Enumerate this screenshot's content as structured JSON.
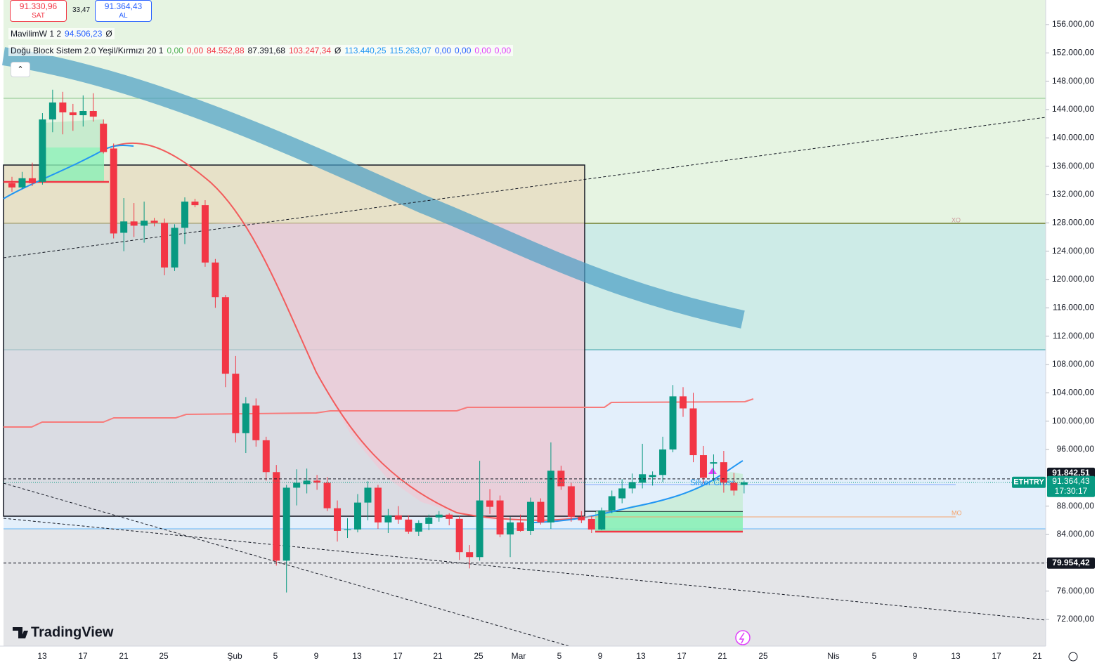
{
  "toolbar": {
    "sell_price": "91.330,96",
    "sell_label": "SAT",
    "spread": "33,47",
    "buy_price": "91.364,43",
    "buy_label": "AL"
  },
  "indicators": [
    {
      "name": "MavilimW 1 2",
      "values": [
        {
          "text": "94.506,23",
          "color": "#2962ff"
        },
        {
          "text": "Ø",
          "color": "#131722"
        }
      ]
    },
    {
      "name": "Doğu Block Sistem 2.0 Yeşil/Kırmızı 20 1",
      "values": [
        {
          "text": "0,00",
          "color": "#4caf50"
        },
        {
          "text": "0,00",
          "color": "#f23645"
        },
        {
          "text": "84.552,88",
          "color": "#f23645"
        },
        {
          "text": "87.391,68",
          "color": "#131722"
        },
        {
          "text": "103.247,34",
          "color": "#f23645"
        },
        {
          "text": "Ø",
          "color": "#131722"
        },
        {
          "text": "113.440,25",
          "color": "#2196f3"
        },
        {
          "text": "115.263,07",
          "color": "#2196f3"
        },
        {
          "text": "0,00",
          "color": "#2962ff"
        },
        {
          "text": "0,00",
          "color": "#2962ff"
        },
        {
          "text": "0,00",
          "color": "#e040fb"
        },
        {
          "text": "0,00",
          "color": "#e040fb"
        }
      ]
    }
  ],
  "annotations": {
    "signal": "Silver Cross",
    "zone_label": "MO",
    "zone_label_upper": "XO",
    "logo": "TradingView"
  },
  "chart_data": {
    "type": "candlestick",
    "series": [
      {
        "name": "ETHTRY",
        "up_color": "#089981",
        "down_color": "#f23645",
        "open": [
          133600,
          133000,
          134300,
          133800,
          142600,
          145000,
          143600,
          143200,
          143800,
          142000,
          138500,
          126600,
          128200,
          127600,
          128300,
          128000,
          121700,
          127300,
          131000,
          130500,
          122400,
          117500,
          106700,
          98300,
          102200,
          97300,
          92800,
          80300,
          90600,
          91100,
          91600,
          91300,
          87700,
          84700,
          84700,
          88500,
          90600,
          85700,
          86700,
          86100,
          84400,
          85500,
          86400,
          86800,
          86200,
          81500,
          80800,
          88800,
          88800,
          84000,
          85700,
          84500,
          88600,
          85700,
          93000,
          90800,
          86500,
          86200,
          84700,
          87400,
          89100,
          90500,
          91300,
          92100,
          92400,
          96000,
          103500,
          101800,
          95200,
          94000,
          94200,
          91300,
          91000
        ],
        "high": [
          134500,
          135200,
          136500,
          143500,
          146800,
          146500,
          144800,
          146000,
          146300,
          142600,
          139200,
          131500,
          130800,
          131000,
          128700,
          128600,
          127800,
          131600,
          131400,
          131200,
          122900,
          117800,
          109200,
          103400,
          103200,
          97800,
          93800,
          91000,
          93200,
          93300,
          92400,
          92100,
          88800,
          86300,
          89700,
          91500,
          91000,
          87600,
          88000,
          86700,
          86000,
          86800,
          87300,
          87000,
          86600,
          82500,
          94400,
          90400,
          89500,
          86500,
          86800,
          89200,
          89100,
          97000,
          93700,
          91300,
          87300,
          86600,
          87800,
          90200,
          91800,
          92600,
          96800,
          92900,
          97800,
          105100,
          104800,
          104000,
          96500,
          95300,
          95800,
          92700,
          91600
        ],
        "low": [
          132400,
          132800,
          133200,
          133400,
          140800,
          140500,
          141000,
          141600,
          142300,
          137800,
          125800,
          124000,
          126000,
          125200,
          127500,
          120600,
          121200,
          125000,
          130200,
          121800,
          116000,
          104800,
          97000,
          95500,
          96400,
          91600,
          79600,
          75800,
          88100,
          89800,
          90300,
          87300,
          83000,
          83500,
          84300,
          86000,
          84800,
          84200,
          85500,
          84100,
          83800,
          84600,
          85800,
          85300,
          80400,
          79200,
          80300,
          86900,
          83600,
          80800,
          84400,
          83900,
          85400,
          84800,
          90300,
          85800,
          85600,
          84200,
          84600,
          87000,
          88400,
          89800,
          90500,
          90900,
          91400,
          95600,
          100600,
          94200,
          91200,
          91500,
          89900,
          89500,
          89800
        ],
        "close": [
          133000,
          134300,
          133600,
          142600,
          145000,
          143600,
          143200,
          143800,
          143000,
          138000,
          126500,
          128200,
          127600,
          128300,
          128000,
          121700,
          127300,
          131000,
          130500,
          122400,
          117500,
          106700,
          98300,
          102500,
          97300,
          92800,
          80300,
          90600,
          91300,
          91600,
          91300,
          87700,
          84500,
          84700,
          88500,
          90600,
          85700,
          86700,
          86100,
          84400,
          85600,
          86400,
          86800,
          86200,
          81500,
          80800,
          88800,
          87900,
          84000,
          85700,
          84500,
          88600,
          85700,
          93000,
          90800,
          86500,
          86000,
          84700,
          87400,
          89400,
          90500,
          91400,
          92500,
          92400,
          96000,
          103500,
          101800,
          95200,
          92000,
          94200,
          91300,
          90200,
          91364.43
        ]
      }
    ],
    "ylim": [
      68230,
      159470
    ],
    "yticks": [
      {
        "value": 156000,
        "label": "156.000,00"
      },
      {
        "value": 152000,
        "label": "152.000,00"
      },
      {
        "value": 148000,
        "label": "148.000,00"
      },
      {
        "value": 144000,
        "label": "144.000,00"
      },
      {
        "value": 140000,
        "label": "140.000,00"
      },
      {
        "value": 136000,
        "label": "136.000,00"
      },
      {
        "value": 132000,
        "label": "132.000,00"
      },
      {
        "value": 128000,
        "label": "128.000,00"
      },
      {
        "value": 124000,
        "label": "124.000,00"
      },
      {
        "value": 120000,
        "label": "120.000,00"
      },
      {
        "value": 116000,
        "label": "116.000,00"
      },
      {
        "value": 112000,
        "label": "112.000,00"
      },
      {
        "value": 108000,
        "label": "108.000,00"
      },
      {
        "value": 104000,
        "label": "104.000,00"
      },
      {
        "value": 100000,
        "label": "100.000,00"
      },
      {
        "value": 96000,
        "label": "96.000,00"
      },
      {
        "value": 92000,
        "label": "92.000,00"
      },
      {
        "value": 88000,
        "label": "88.000,00"
      },
      {
        "value": 84000,
        "label": "84.000,00"
      },
      {
        "value": 80000,
        "label": "80.000,00"
      },
      {
        "value": 76000,
        "label": "76.000,00"
      },
      {
        "value": 72000,
        "label": "72.000,00"
      }
    ],
    "xticks": [
      "13",
      "17",
      "21",
      "25",
      "Şub",
      "5",
      "9",
      "13",
      "17",
      "21",
      "25",
      "Mar",
      "5",
      "9",
      "13",
      "17",
      "21",
      "25",
      "Nis",
      "5",
      "9",
      "13",
      "17",
      "21"
    ],
    "price_lines": [
      {
        "value": 91842.51,
        "label": "91.842,51"
      },
      {
        "value": 79954.42,
        "label": "79.954,42"
      }
    ],
    "last_price": {
      "value": 91364.43,
      "label": "91.364,43",
      "symbol": "ETHTRY",
      "countdown": "17:30:17"
    }
  }
}
